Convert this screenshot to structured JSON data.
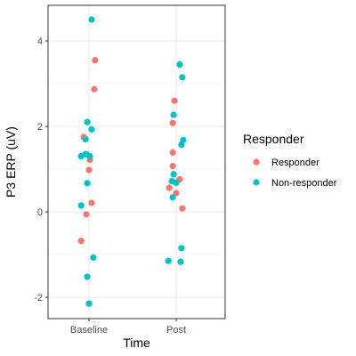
{
  "chart_data": {
    "type": "scatter",
    "xlabel": "Time",
    "ylabel": "P3 ERP (uV)",
    "categories": [
      "Baseline",
      "Post"
    ],
    "ylim": [
      -2.2,
      4.7
    ],
    "yticks": [
      -2,
      0,
      2,
      4
    ],
    "grid": true,
    "legend": {
      "title": "Responder",
      "placement": "right",
      "entries": [
        {
          "name": "Responder",
          "color": "#F8766D"
        },
        {
          "name": "Non-responder",
          "color": "#00BFC4"
        }
      ]
    },
    "series": [
      {
        "name": "Responder",
        "color": "#F8766D",
        "points": [
          {
            "x": "Baseline",
            "jitter": 0.07,
            "y": 3.55
          },
          {
            "x": "Baseline",
            "jitter": 0.06,
            "y": 2.87
          },
          {
            "x": "Baseline",
            "jitter": -0.06,
            "y": 1.75
          },
          {
            "x": "Baseline",
            "jitter": -0.03,
            "y": 1.35
          },
          {
            "x": "Baseline",
            "jitter": 0.01,
            "y": 1.22
          },
          {
            "x": "Baseline",
            "jitter": 0.0,
            "y": 0.98
          },
          {
            "x": "Baseline",
            "jitter": 0.03,
            "y": 0.21
          },
          {
            "x": "Baseline",
            "jitter": -0.03,
            "y": -0.06
          },
          {
            "x": "Baseline",
            "jitter": -0.09,
            "y": -0.68
          },
          {
            "x": "Post",
            "jitter": -0.02,
            "y": 2.6
          },
          {
            "x": "Post",
            "jitter": -0.04,
            "y": 2.08
          },
          {
            "x": "Post",
            "jitter": -0.04,
            "y": 1.39
          },
          {
            "x": "Post",
            "jitter": -0.04,
            "y": 1.07
          },
          {
            "x": "Post",
            "jitter": 0.04,
            "y": 0.76
          },
          {
            "x": "Post",
            "jitter": -0.08,
            "y": 0.56
          },
          {
            "x": "Post",
            "jitter": 0.0,
            "y": 0.44
          },
          {
            "x": "Post",
            "jitter": 0.07,
            "y": 0.08
          }
        ]
      },
      {
        "name": "Non-responder",
        "color": "#00BFC4",
        "points": [
          {
            "x": "Baseline",
            "jitter": 0.03,
            "y": 4.5
          },
          {
            "x": "Baseline",
            "jitter": -0.02,
            "y": 2.1
          },
          {
            "x": "Baseline",
            "jitter": 0.03,
            "y": 1.93
          },
          {
            "x": "Baseline",
            "jitter": -0.04,
            "y": 1.7
          },
          {
            "x": "Baseline",
            "jitter": -0.09,
            "y": 1.3
          },
          {
            "x": "Baseline",
            "jitter": -0.04,
            "y": 1.35
          },
          {
            "x": "Baseline",
            "jitter": 0.01,
            "y": 1.3
          },
          {
            "x": "Baseline",
            "jitter": -0.02,
            "y": 0.67
          },
          {
            "x": "Baseline",
            "jitter": -0.09,
            "y": 0.15
          },
          {
            "x": "Baseline",
            "jitter": 0.05,
            "y": -1.07
          },
          {
            "x": "Baseline",
            "jitter": -0.02,
            "y": -1.52
          },
          {
            "x": "Baseline",
            "jitter": 0.0,
            "y": -2.15
          },
          {
            "x": "Post",
            "jitter": 0.04,
            "y": 3.45
          },
          {
            "x": "Post",
            "jitter": 0.07,
            "y": 3.15
          },
          {
            "x": "Post",
            "jitter": -0.03,
            "y": 2.27
          },
          {
            "x": "Post",
            "jitter": 0.08,
            "y": 1.68
          },
          {
            "x": "Post",
            "jitter": 0.06,
            "y": 1.57
          },
          {
            "x": "Post",
            "jitter": -0.03,
            "y": 0.88
          },
          {
            "x": "Post",
            "jitter": -0.05,
            "y": 0.72
          },
          {
            "x": "Post",
            "jitter": 0.0,
            "y": 0.68
          },
          {
            "x": "Post",
            "jitter": -0.04,
            "y": 0.34
          },
          {
            "x": "Post",
            "jitter": 0.06,
            "y": -0.85
          },
          {
            "x": "Post",
            "jitter": -0.09,
            "y": -1.15
          },
          {
            "x": "Post",
            "jitter": 0.05,
            "y": -1.17
          }
        ]
      }
    ]
  }
}
